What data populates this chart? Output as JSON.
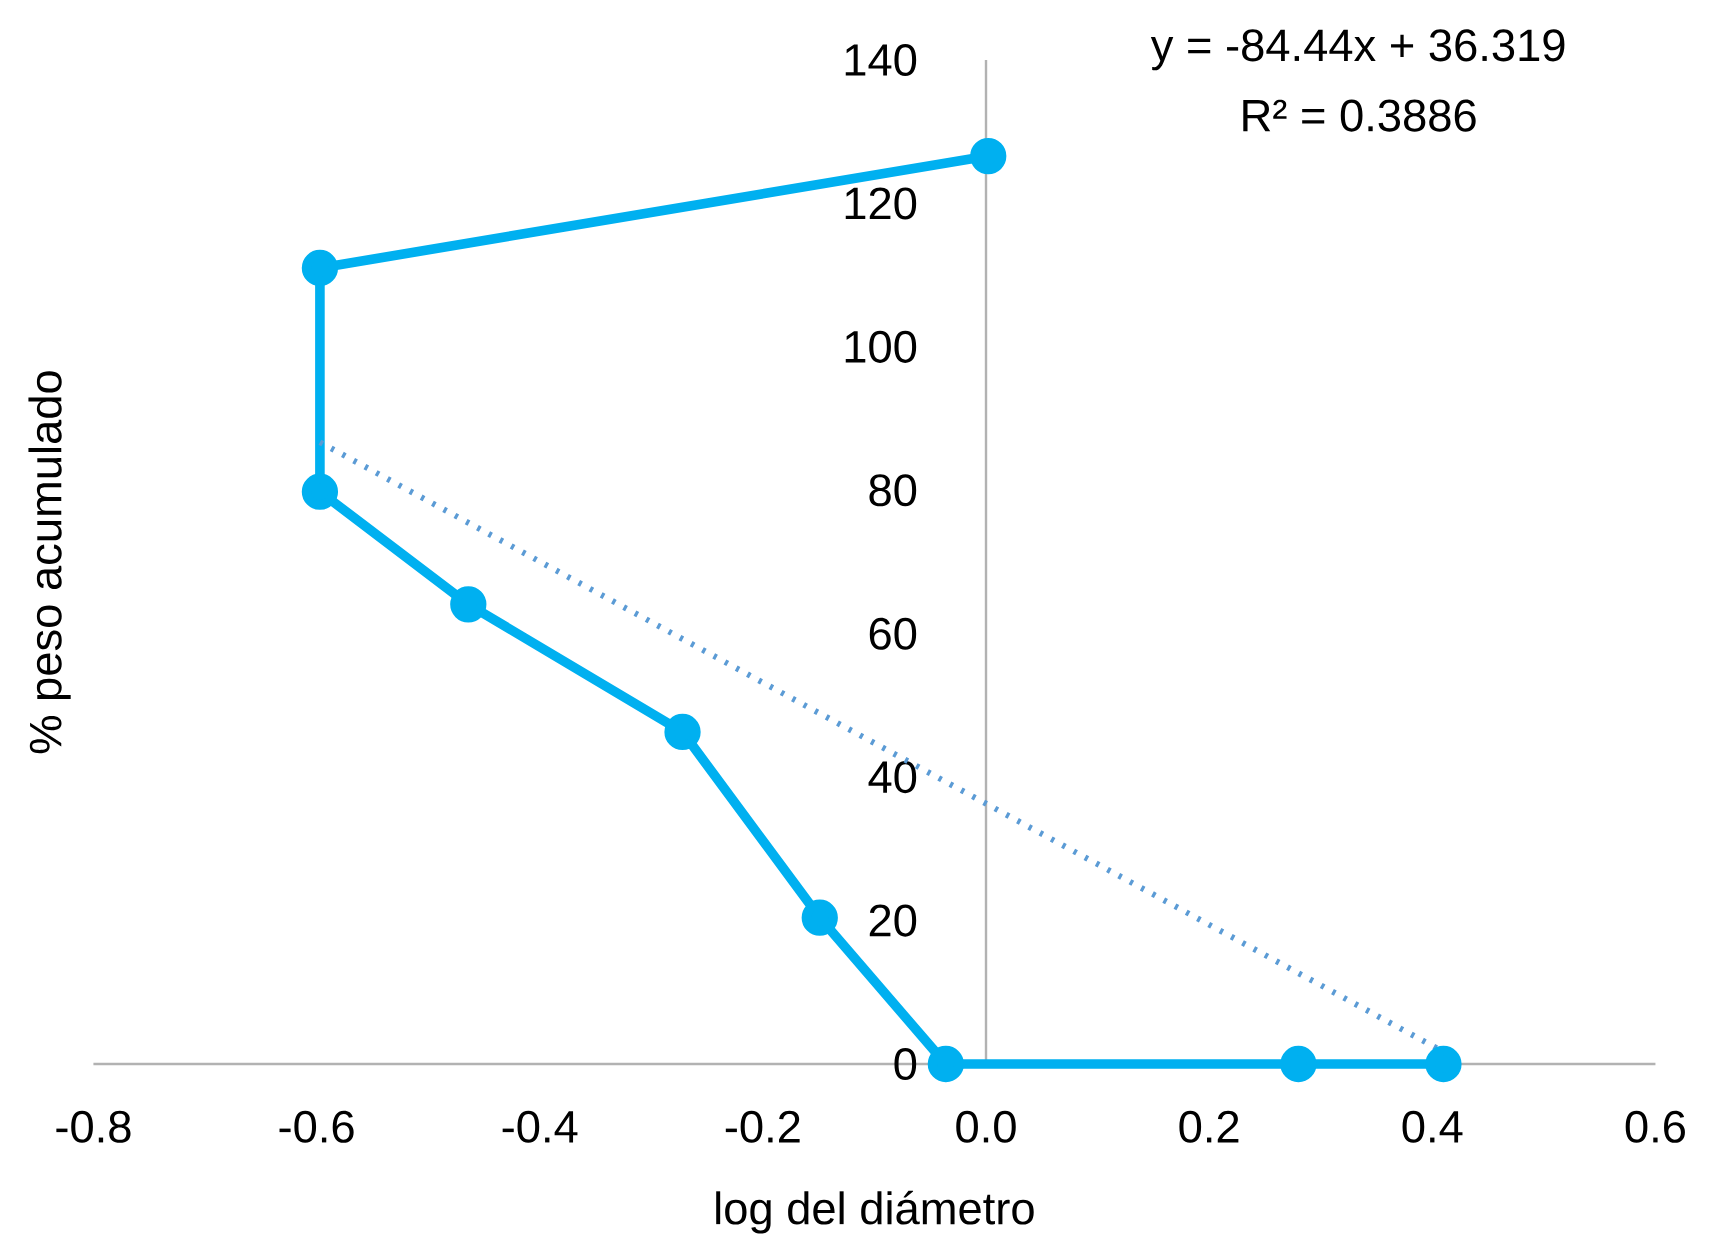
{
  "chart_data": {
    "type": "line",
    "xlabel": "log del diámetro",
    "ylabel": "% peso acumulado",
    "annotations": [
      "y = -84.44x + 36.319",
      "R² = 0.3886"
    ],
    "xlim": [
      -0.8,
      0.6
    ],
    "ylim": [
      0,
      140
    ],
    "xticks": [
      -0.8,
      -0.6,
      -0.4,
      -0.2,
      {
        "value": 0,
        "label": "0.0"
      },
      0.2,
      0.4,
      0.6
    ],
    "yticks": [
      0,
      20,
      40,
      60,
      80,
      100,
      120,
      140
    ],
    "series": [
      {
        "color": "#00b0f0",
        "marker": "circle",
        "line_style": "solid",
        "x": [
          0.002,
          -0.597,
          -0.597,
          -0.464,
          -0.272,
          -0.149,
          -0.036,
          0.28,
          0.41
        ],
        "values": [
          126.6,
          111,
          79.8,
          64.1,
          46.3,
          20.4,
          0,
          0,
          0
        ]
      },
      {
        "type": "line",
        "color": "#5b9bd5",
        "marker": "none",
        "line_style": "dotted",
        "x": [
          -0.597,
          0.41
        ],
        "values": [
          86.7,
          1.7
        ]
      }
    ]
  }
}
